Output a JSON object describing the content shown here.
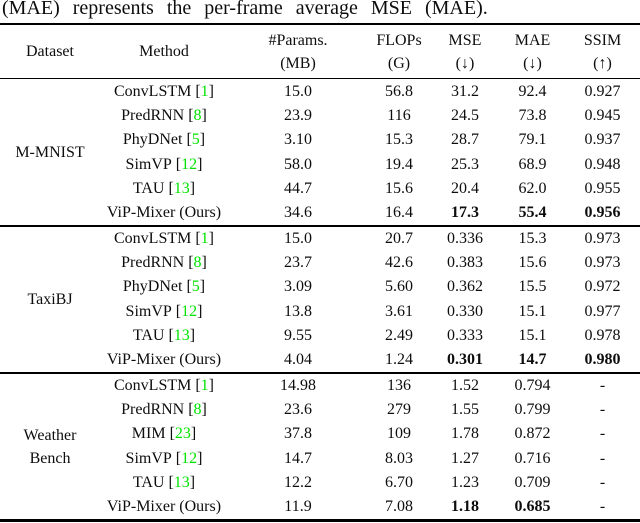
{
  "caption": "(MAE) represents the per-frame average MSE (MAE).",
  "colors": {
    "citation_green": "#00e400",
    "text": "#0d0d0d",
    "rule": "#000000"
  },
  "table": {
    "columns": [
      {
        "id": "dataset",
        "line1": "Dataset",
        "line2": ""
      },
      {
        "id": "method",
        "line1": "Method",
        "line2": ""
      },
      {
        "id": "params",
        "line1": "#Params.",
        "line2": "(MB)"
      },
      {
        "id": "flops",
        "line1": "FLOPs",
        "line2": "(G)"
      },
      {
        "id": "mse",
        "line1": "MSE",
        "line2": "(↓)"
      },
      {
        "id": "mae",
        "line1": "MAE",
        "line2": "(↓)"
      },
      {
        "id": "ssim",
        "line1": "SSIM",
        "line2": "(↑)"
      }
    ],
    "groups": [
      {
        "dataset_lines": [
          "M-MNIST"
        ],
        "rows": [
          {
            "method": "ConvLSTM",
            "cite": "1",
            "values": [
              "15.0",
              "56.8",
              "31.2",
              "92.4",
              "0.927"
            ],
            "bold": [
              false,
              false,
              false,
              false,
              false
            ]
          },
          {
            "method": "PredRNN",
            "cite": "8",
            "values": [
              "23.9",
              "116",
              "24.5",
              "73.8",
              "0.945"
            ],
            "bold": [
              false,
              false,
              false,
              false,
              false
            ]
          },
          {
            "method": "PhyDNet",
            "cite": "5",
            "values": [
              "3.10",
              "15.3",
              "28.7",
              "79.1",
              "0.937"
            ],
            "bold": [
              false,
              false,
              false,
              false,
              false
            ]
          },
          {
            "method": "SimVP",
            "cite": "12",
            "values": [
              "58.0",
              "19.4",
              "25.3",
              "68.9",
              "0.948"
            ],
            "bold": [
              false,
              false,
              false,
              false,
              false
            ]
          },
          {
            "method": "TAU",
            "cite": "13",
            "values": [
              "44.7",
              "15.6",
              "20.4",
              "62.0",
              "0.955"
            ],
            "bold": [
              false,
              false,
              false,
              false,
              false
            ]
          },
          {
            "method": "ViP-Mixer (Ours)",
            "cite": null,
            "values": [
              "34.6",
              "16.4",
              "17.3",
              "55.4",
              "0.956"
            ],
            "bold": [
              false,
              false,
              true,
              true,
              true
            ]
          }
        ]
      },
      {
        "dataset_lines": [
          "TaxiBJ"
        ],
        "rows": [
          {
            "method": "ConvLSTM",
            "cite": "1",
            "values": [
              "15.0",
              "20.7",
              "0.336",
              "15.3",
              "0.973"
            ],
            "bold": [
              false,
              false,
              false,
              false,
              false
            ]
          },
          {
            "method": "PredRNN",
            "cite": "8",
            "values": [
              "23.7",
              "42.6",
              "0.383",
              "15.6",
              "0.973"
            ],
            "bold": [
              false,
              false,
              false,
              false,
              false
            ]
          },
          {
            "method": "PhyDNet",
            "cite": "5",
            "values": [
              "3.09",
              "5.60",
              "0.362",
              "15.5",
              "0.972"
            ],
            "bold": [
              false,
              false,
              false,
              false,
              false
            ]
          },
          {
            "method": "SimVP",
            "cite": "12",
            "values": [
              "13.8",
              "3.61",
              "0.330",
              "15.1",
              "0.977"
            ],
            "bold": [
              false,
              false,
              false,
              false,
              false
            ]
          },
          {
            "method": "TAU",
            "cite": "13",
            "values": [
              "9.55",
              "2.49",
              "0.333",
              "15.1",
              "0.978"
            ],
            "bold": [
              false,
              false,
              false,
              false,
              false
            ]
          },
          {
            "method": "ViP-Mixer (Ours)",
            "cite": null,
            "values": [
              "4.04",
              "1.24",
              "0.301",
              "14.7",
              "0.980"
            ],
            "bold": [
              false,
              false,
              true,
              true,
              true
            ]
          }
        ]
      },
      {
        "dataset_lines": [
          "Weather",
          "Bench"
        ],
        "rows": [
          {
            "method": "ConvLSTM",
            "cite": "1",
            "values": [
              "14.98",
              "136",
              "1.52",
              "0.794",
              "-"
            ],
            "bold": [
              false,
              false,
              false,
              false,
              false
            ]
          },
          {
            "method": "PredRNN",
            "cite": "8",
            "values": [
              "23.6",
              "279",
              "1.55",
              "0.799",
              "-"
            ],
            "bold": [
              false,
              false,
              false,
              false,
              false
            ]
          },
          {
            "method": "MIM",
            "cite": "23",
            "values": [
              "37.8",
              "109",
              "1.78",
              "0.872",
              "-"
            ],
            "bold": [
              false,
              false,
              false,
              false,
              false
            ]
          },
          {
            "method": "SimVP",
            "cite": "12",
            "values": [
              "14.7",
              "8.03",
              "1.27",
              "0.716",
              "-"
            ],
            "bold": [
              false,
              false,
              false,
              false,
              false
            ]
          },
          {
            "method": "TAU",
            "cite": "13",
            "values": [
              "12.2",
              "6.70",
              "1.23",
              "0.709",
              "-"
            ],
            "bold": [
              false,
              false,
              false,
              false,
              false
            ]
          },
          {
            "method": "ViP-Mixer (Ours)",
            "cite": null,
            "values": [
              "11.9",
              "7.08",
              "1.18",
              "0.685",
              "-"
            ],
            "bold": [
              false,
              false,
              true,
              true,
              false
            ]
          }
        ]
      }
    ]
  }
}
